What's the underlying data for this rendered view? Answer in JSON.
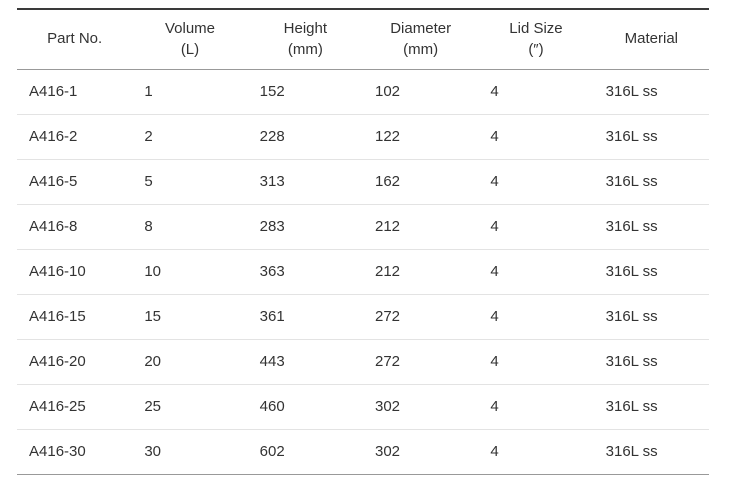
{
  "page": {
    "background": "#ffffff"
  },
  "table": {
    "columns": [
      {
        "key": "part-no",
        "label": "Part No.",
        "unit": ""
      },
      {
        "key": "volume",
        "label": "Volume",
        "unit": "(L)"
      },
      {
        "key": "height",
        "label": "Height",
        "unit": "(mm)"
      },
      {
        "key": "diameter",
        "label": "Diameter",
        "unit": "(mm)"
      },
      {
        "key": "lid-size",
        "label": "Lid Size",
        "unit": "(″)"
      },
      {
        "key": "material",
        "label": "Material",
        "unit": ""
      }
    ],
    "rows": [
      [
        "A416-1",
        "1",
        "152",
        "102",
        "4",
        "316L ss"
      ],
      [
        "A416-2",
        "2",
        "228",
        "122",
        "4",
        "316L ss"
      ],
      [
        "A416-5",
        "5",
        "313",
        "162",
        "4",
        "316L ss"
      ],
      [
        "A416-8",
        "8",
        "283",
        "212",
        "4",
        "316L ss"
      ],
      [
        "A416-10",
        "10",
        "363",
        "212",
        "4",
        "316L ss"
      ],
      [
        "A416-15",
        "15",
        "361",
        "272",
        "4",
        "316L ss"
      ],
      [
        "A416-20",
        "20",
        "443",
        "272",
        "4",
        "316L ss"
      ],
      [
        "A416-25",
        "25",
        "460",
        "302",
        "4",
        "316L ss"
      ],
      [
        "A416-30",
        "30",
        "602",
        "302",
        "4",
        "316L ss"
      ]
    ],
    "colors": {
      "top_border": "#3a3a3a",
      "header_border": "#999999",
      "row_border": "#e3e3e3",
      "bottom_border": "#999999",
      "text": "#333333"
    }
  }
}
